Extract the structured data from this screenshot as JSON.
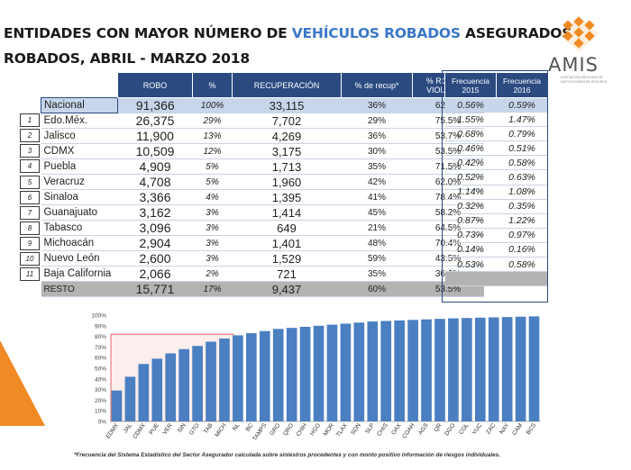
{
  "title": {
    "line1_a": "ENTIDADES CON MAYOR NÚMERO DE ",
    "line1_b": "VEHÍCULOS ROBADOS",
    "line1_c": " ASEGURADOS",
    "line2": "ROBADOS, ABRIL  - MARZO 2018"
  },
  "logo": {
    "word": "AMIS",
    "subtitle": "ASOCIACIÓN MEXICANA DE INSTITUCIONES DE SEGUROS",
    "color": "#f08a24"
  },
  "colors": {
    "header": "#2a4a80",
    "bar": "#4a7fc1",
    "highlight": "#e06060",
    "accent": "#f08a24"
  },
  "table": {
    "headers": [
      "ROBO",
      "%",
      "RECUPERACIÓN",
      "% de recup*",
      "% ROBO C/ VIOLENCIA"
    ],
    "national": {
      "name": "Nacional",
      "robo": "91,366",
      "pct": "100%",
      "recu": "33,115",
      "prec": "36%",
      "viol": "62.6%"
    },
    "rows": [
      {
        "rank": "1",
        "name": "Edo.Méx.",
        "robo": "26,375",
        "pct": "29%",
        "recu": "7,702",
        "prec": "29%",
        "viol": "75.5%"
      },
      {
        "rank": "2",
        "name": "Jalisco",
        "robo": "11,900",
        "pct": "13%",
        "recu": "4,269",
        "prec": "36%",
        "viol": "53.7%"
      },
      {
        "rank": "3",
        "name": "CDMX",
        "robo": "10,509",
        "pct": "12%",
        "recu": "3,175",
        "prec": "30%",
        "viol": "53.5%"
      },
      {
        "rank": "4",
        "name": "Puebla",
        "robo": "4,909",
        "pct": "5%",
        "recu": "1,713",
        "prec": "35%",
        "viol": "71.5%"
      },
      {
        "rank": "5",
        "name": "Veracruz",
        "robo": "4,708",
        "pct": "5%",
        "recu": "1,960",
        "prec": "42%",
        "viol": "62.0%"
      },
      {
        "rank": "6",
        "name": "Sinaloa",
        "robo": "3,366",
        "pct": "4%",
        "recu": "1,395",
        "prec": "41%",
        "viol": "78.4%"
      },
      {
        "rank": "7",
        "name": "Guanajuato",
        "robo": "3,162",
        "pct": "3%",
        "recu": "1,414",
        "prec": "45%",
        "viol": "58.2%"
      },
      {
        "rank": "8",
        "name": "Tabasco",
        "robo": "3,096",
        "pct": "3%",
        "recu": "649",
        "prec": "21%",
        "viol": "64.5%"
      },
      {
        "rank": "9",
        "name": "Michoacán",
        "robo": "2,904",
        "pct": "3%",
        "recu": "1,401",
        "prec": "48%",
        "viol": "70.4%"
      },
      {
        "rank": "10",
        "name": "Nuevo León",
        "robo": "2,600",
        "pct": "3%",
        "recu": "1,529",
        "prec": "59%",
        "viol": "43.5%"
      },
      {
        "rank": "11",
        "name": "Baja California",
        "robo": "2,066",
        "pct": "2%",
        "recu": "721",
        "prec": "35%",
        "viol": "36.6%"
      }
    ],
    "resto": {
      "name": "RESTO",
      "robo": "15,771",
      "pct": "17%",
      "recu": "9,437",
      "prec": "60%",
      "viol": "53.5%"
    }
  },
  "freq": {
    "headers": [
      "Frecuencia 2015",
      "Frecuencia 2016"
    ],
    "national": [
      "0.56%",
      "0.59%"
    ],
    "rows": [
      [
        "1.55%",
        "1.47%"
      ],
      [
        "0.68%",
        "0.79%"
      ],
      [
        "0.46%",
        "0.51%"
      ],
      [
        "0.42%",
        "0.58%"
      ],
      [
        "0.52%",
        "0.63%"
      ],
      [
        "1.14%",
        "1.08%"
      ],
      [
        "0.32%",
        "0.35%"
      ],
      [
        "0.87%",
        "1.22%"
      ],
      [
        "0.73%",
        "0.97%"
      ],
      [
        "0.14%",
        "0.16%"
      ],
      [
        "0.53%",
        "0.58%"
      ]
    ]
  },
  "chart_data": {
    "type": "bar",
    "categories": [
      "EDMX",
      "JAL",
      "CDMX",
      "PUE",
      "VER",
      "SIN",
      "GTO",
      "TAB",
      "MICH",
      "NL",
      "BC",
      "TAMPS",
      "GRO",
      "QRO",
      "CHIH",
      "HGO",
      "MOR",
      "TLAX",
      "SON",
      "SLP",
      "CHIS",
      "OAX",
      "COAH",
      "AGS",
      "QR",
      "DGO",
      "COL",
      "YUC",
      "ZAC",
      "NAY",
      "CAM",
      "BCS"
    ],
    "values": [
      29,
      42,
      54,
      59,
      64,
      68,
      71,
      75,
      78,
      81,
      83,
      85,
      87,
      88,
      89,
      90,
      91,
      92,
      93,
      94,
      94.5,
      95,
      95.5,
      96,
      96.5,
      97,
      97.3,
      97.6,
      97.9,
      98.2,
      98.5,
      98.8
    ],
    "ylim": [
      0,
      100
    ],
    "yticks": [
      "0%",
      "10%",
      "20%",
      "30%",
      "40%",
      "50%",
      "60%",
      "70%",
      "80%",
      "90%",
      "100%"
    ],
    "highlight_range": [
      0,
      8
    ],
    "grid": false
  },
  "footnote": "*Frecuencia del Sistema Estadístico del Sector Asegurador calculada sobre siniestros procedentes y con monto positivo información de riesgos individuales."
}
